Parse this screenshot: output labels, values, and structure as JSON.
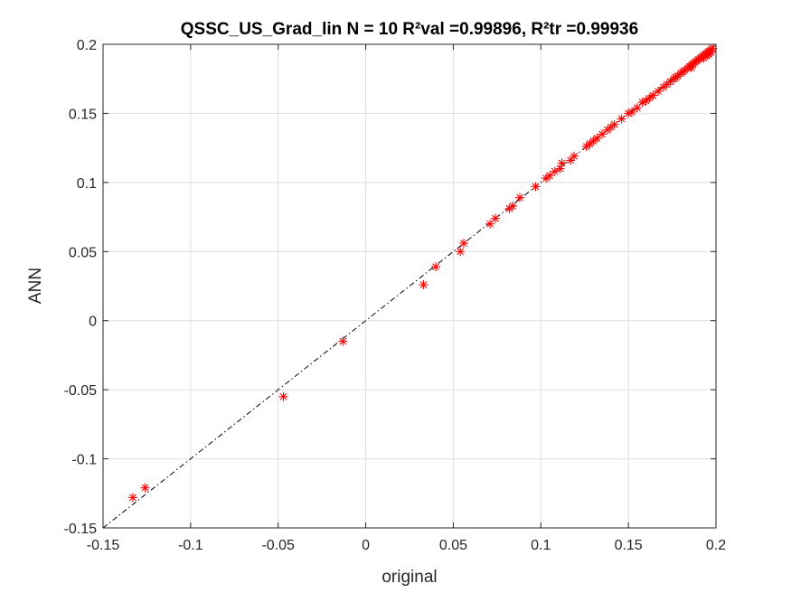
{
  "chart_data": {
    "type": "scatter",
    "title": "QSSC_US_Grad_lin  N = 10 R²val =0.99896, R²tr =0.99936",
    "xlabel": "original",
    "ylabel": "ANN",
    "xlim": [
      -0.15,
      0.2
    ],
    "ylim": [
      -0.15,
      0.2
    ],
    "xticks": [
      -0.15,
      -0.1,
      -0.05,
      0,
      0.05,
      0.1,
      0.15,
      0.2
    ],
    "yticks": [
      -0.15,
      -0.1,
      -0.05,
      0,
      0.05,
      0.1,
      0.15,
      0.2
    ],
    "xtick_labels": [
      "-0.15",
      "-0.1",
      "-0.05",
      "0",
      "0.05",
      "0.1",
      "0.15",
      "0.2"
    ],
    "ytick_labels": [
      "-0.15",
      "-0.1",
      "-0.05",
      "0",
      "0.05",
      "0.1",
      "0.15",
      "0.2"
    ],
    "grid": true,
    "marker": "*",
    "marker_color": "#ff0000",
    "reference_line": {
      "style": "dash-dot",
      "color": "#000000",
      "x": [
        -0.15,
        0.2
      ],
      "y": [
        -0.15,
        0.2
      ]
    },
    "x": [
      -0.133,
      -0.126,
      -0.047,
      -0.013,
      0.033,
      0.04,
      0.054,
      0.056,
      0.071,
      0.074,
      0.082,
      0.084,
      0.088,
      0.097,
      0.103,
      0.105,
      0.108,
      0.111,
      0.112,
      0.117,
      0.119,
      0.126,
      0.128,
      0.13,
      0.132,
      0.135,
      0.138,
      0.14,
      0.142,
      0.146,
      0.15,
      0.152,
      0.155,
      0.158,
      0.16,
      0.162,
      0.164,
      0.167,
      0.17,
      0.172,
      0.174,
      0.176,
      0.177,
      0.178,
      0.18,
      0.181,
      0.182,
      0.184,
      0.185,
      0.186,
      0.187,
      0.188,
      0.189,
      0.19,
      0.191,
      0.192,
      0.193,
      0.193,
      0.194,
      0.195,
      0.195,
      0.196,
      0.196,
      0.197,
      0.197,
      0.198,
      0.186
    ],
    "y": [
      -0.128,
      -0.121,
      -0.055,
      -0.015,
      0.026,
      0.039,
      0.05,
      0.056,
      0.07,
      0.074,
      0.081,
      0.083,
      0.089,
      0.097,
      0.103,
      0.105,
      0.108,
      0.11,
      0.114,
      0.116,
      0.119,
      0.126,
      0.128,
      0.13,
      0.132,
      0.135,
      0.138,
      0.14,
      0.142,
      0.146,
      0.15,
      0.151,
      0.154,
      0.158,
      0.159,
      0.161,
      0.163,
      0.166,
      0.169,
      0.171,
      0.173,
      0.175,
      0.176,
      0.177,
      0.179,
      0.18,
      0.181,
      0.183,
      0.184,
      0.185,
      0.186,
      0.187,
      0.188,
      0.189,
      0.19,
      0.191,
      0.192,
      0.19,
      0.193,
      0.194,
      0.192,
      0.195,
      0.193,
      0.196,
      0.194,
      0.197,
      0.183
    ]
  }
}
